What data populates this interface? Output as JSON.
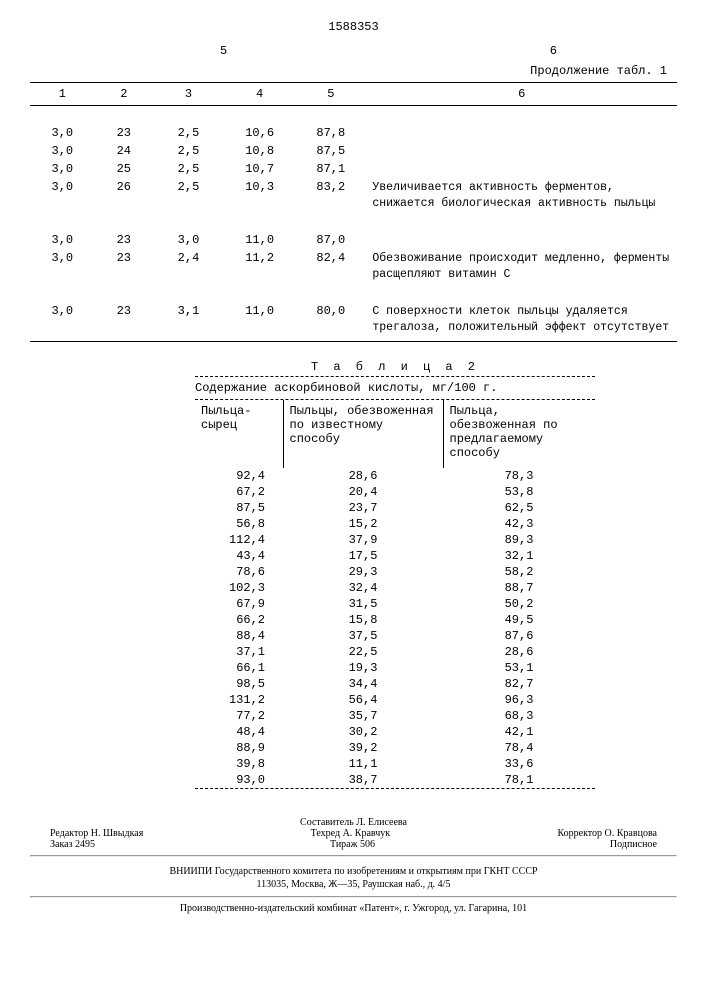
{
  "doc_number": "1588353",
  "col_left": "5",
  "col_right": "6",
  "continuation": "Продолжение табл. 1",
  "table1": {
    "headers": [
      "1",
      "2",
      "3",
      "4",
      "5",
      "6"
    ],
    "rows": [
      {
        "c1": "3,0",
        "c2": "23",
        "c3": "2,5",
        "c4": "10,6",
        "c5": "87,8",
        "note": ""
      },
      {
        "c1": "3,0",
        "c2": "24",
        "c3": "2,5",
        "c4": "10,8",
        "c5": "87,5",
        "note": ""
      },
      {
        "c1": "3,0",
        "c2": "25",
        "c3": "2,5",
        "c4": "10,7",
        "c5": "87,1",
        "note": ""
      },
      {
        "c1": "3,0",
        "c2": "26",
        "c3": "2,5",
        "c4": "10,3",
        "c5": "83,2",
        "note": "Увеличивается активность ферментов, снижается биологическая активность пыльцы"
      },
      {
        "c1": "3,0",
        "c2": "23",
        "c3": "3,0",
        "c4": "11,0",
        "c5": "87,0",
        "note": ""
      },
      {
        "c1": "3,0",
        "c2": "23",
        "c3": "2,4",
        "c4": "11,2",
        "c5": "82,4",
        "note": "Обезвоживание происходит медленно, ферменты расщепляют витамин С"
      },
      {
        "c1": "3,0",
        "c2": "23",
        "c3": "3,1",
        "c4": "11,0",
        "c5": "80,0",
        "note": "С поверхности клеток пыльцы удаляется трегалоза, положительный эффект отсутствует"
      }
    ]
  },
  "table2": {
    "title": "Т а б л и ц а  2",
    "caption": "Содержание аскорбиновой кислоты, мг/100 г.",
    "headers": [
      "Пыльца-сырец",
      "Пыльцы, обезвоженная по известному способу",
      "Пыльца, обезвоженная по предлагаемому способу"
    ],
    "rows": [
      [
        "92,4",
        "28,6",
        "78,3"
      ],
      [
        "67,2",
        "20,4",
        "53,8"
      ],
      [
        "87,5",
        "23,7",
        "62,5"
      ],
      [
        "56,8",
        "15,2",
        "42,3"
      ],
      [
        "112,4",
        "37,9",
        "89,3"
      ],
      [
        "43,4",
        "17,5",
        "32,1"
      ],
      [
        "78,6",
        "29,3",
        "58,2"
      ],
      [
        "102,3",
        "32,4",
        "88,7"
      ],
      [
        "67,9",
        "31,5",
        "50,2"
      ],
      [
        "66,2",
        "15,8",
        "49,5"
      ],
      [
        "88,4",
        "37,5",
        "87,6"
      ],
      [
        "37,1",
        "22,5",
        "28,6"
      ],
      [
        "66,1",
        "19,3",
        "53,1"
      ],
      [
        "98,5",
        "34,4",
        "82,7"
      ],
      [
        "131,2",
        "56,4",
        "96,3"
      ],
      [
        "77,2",
        "35,7",
        "68,3"
      ],
      [
        "48,4",
        "30,2",
        "42,1"
      ],
      [
        "88,9",
        "39,2",
        "78,4"
      ],
      [
        "39,8",
        "11,1",
        "33,6"
      ],
      [
        "93,0",
        "38,7",
        "78,1"
      ]
    ]
  },
  "footer": {
    "compiler": "Составитель Л. Елисеева",
    "editor": "Редактор Н. Швыдкая",
    "techred": "Техред А. Кравчук",
    "corrector": "Корректор О. Кравцова",
    "order": "Заказ 2495",
    "tirage": "Тираж 506",
    "sign": "Подписное",
    "line1": "ВНИИПИ Государственного комитета по изобретениям и открытиям при ГКНТ СССР",
    "line2": "113035, Москва, Ж—35, Раушская наб., д. 4/5",
    "line3": "Производственно-издательский комбинат «Патент», г. Ужгород, ул. Гагарина, 101"
  }
}
